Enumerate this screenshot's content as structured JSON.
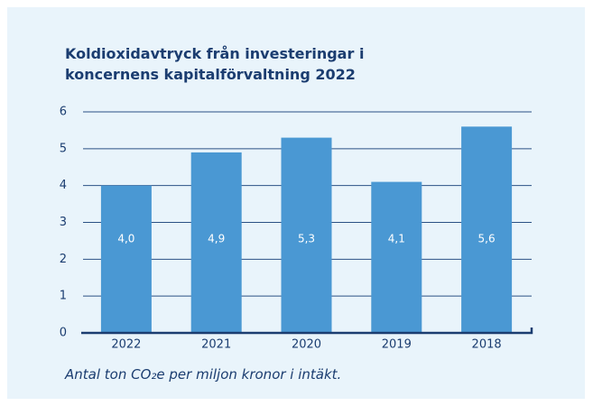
{
  "chart_data": {
    "type": "bar",
    "title": "Koldioxidavtryck från investeringar i koncernens kapitalförvaltning 2022",
    "categories": [
      "2022",
      "2021",
      "2020",
      "2019",
      "2018"
    ],
    "values": [
      4.0,
      4.9,
      5.3,
      4.1,
      5.6
    ],
    "value_labels": [
      "4,0",
      "4,9",
      "5,3",
      "4,1",
      "5,6"
    ],
    "color": "#4a98d3",
    "ylim": [
      0,
      6
    ],
    "yticks": [
      0,
      1,
      2,
      3,
      4,
      5,
      6
    ],
    "grid": true,
    "caption": "Antal ton CO₂e per miljon kronor i intäkt."
  }
}
